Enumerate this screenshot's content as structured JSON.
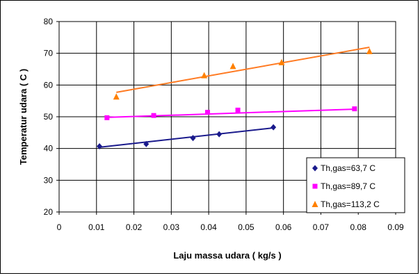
{
  "chart_data": {
    "type": "scatter",
    "xlabel": "Laju massa udara ( kg/s )",
    "ylabel": "Temperatur udara ( C )",
    "xlim": [
      0,
      0.09
    ],
    "ylim": [
      20,
      80
    ],
    "x_ticks": [
      "0",
      "0.01",
      "0.02",
      "0.03",
      "0.04",
      "0.05",
      "0.06",
      "0.07",
      "0.08",
      "0.09"
    ],
    "y_ticks": [
      "20",
      "30",
      "40",
      "50",
      "60",
      "70",
      "80"
    ],
    "grid": true,
    "legend_position": "bottom-right",
    "series": [
      {
        "name": "Th,gas=63,7 C",
        "marker": "diamond",
        "color": "#1a1a8c",
        "trendline_color": "#1a1a8c",
        "x": [
          0.0108,
          0.0233,
          0.0358,
          0.0428,
          0.0573
        ],
        "y": [
          40.7,
          41.4,
          43.3,
          44.5,
          46.7
        ],
        "trendline": [
          [
            0.0108,
            40.4
          ],
          [
            0.0573,
            46.5
          ]
        ]
      },
      {
        "name": "Th,gas=89,7 C",
        "marker": "square",
        "color": "#ff00ff",
        "trendline_color": "#ff00ff",
        "x": [
          0.0128,
          0.0253,
          0.0397,
          0.0478,
          0.079
        ],
        "y": [
          49.7,
          50.4,
          51.4,
          52.1,
          52.5
        ],
        "trendline": [
          [
            0.0128,
            49.8
          ],
          [
            0.079,
            52.4
          ]
        ]
      },
      {
        "name": "Th,gas=113,2 C",
        "marker": "triangle",
        "color": "#ff8000",
        "trendline_color": "#ff7a22",
        "x": [
          0.0153,
          0.0388,
          0.0465,
          0.0595,
          0.083
        ],
        "y": [
          56.3,
          63.0,
          65.9,
          67.1,
          70.6
        ],
        "trendline": [
          [
            0.0153,
            57.7
          ],
          [
            0.083,
            71.9
          ]
        ]
      }
    ]
  }
}
